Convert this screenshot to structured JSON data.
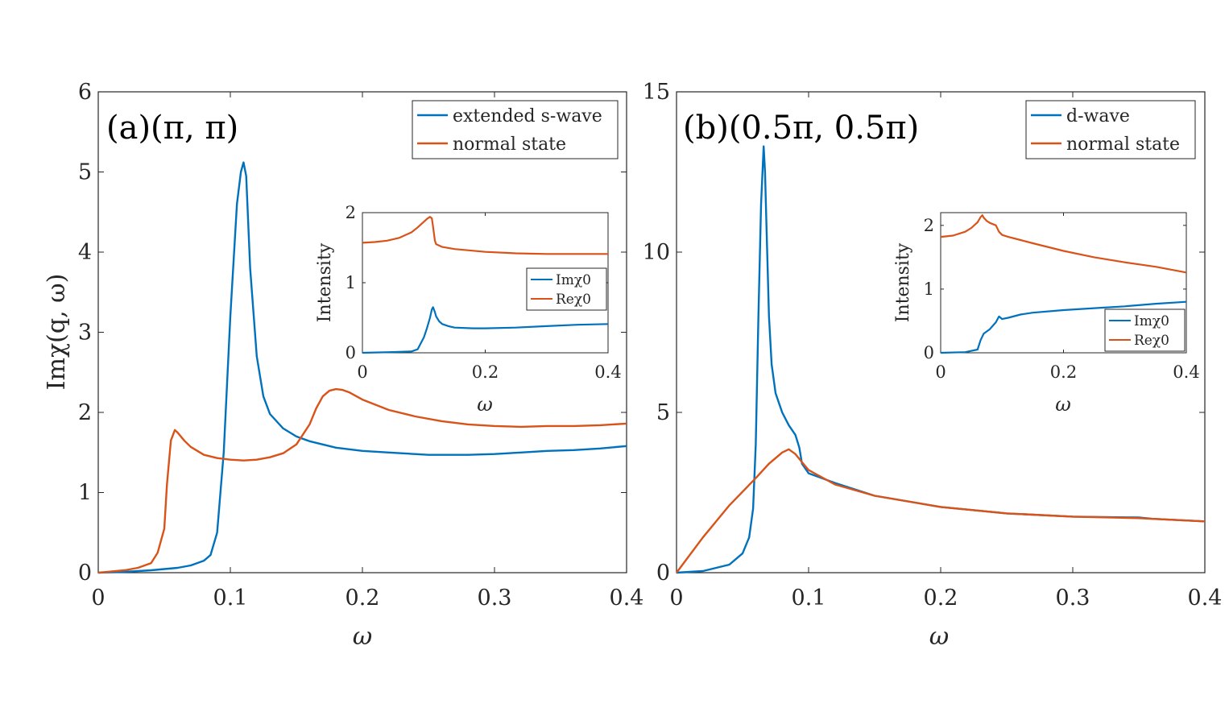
{
  "colors": {
    "blue": "#0072bd",
    "orange": "#d95319",
    "axis": "#262626"
  },
  "chart_data": [
    {
      "id": "a",
      "type": "line",
      "title": "(a)(π, π)",
      "xlabel": "ω",
      "ylabel": "Imχ(q, ω)",
      "xlim": [
        0,
        0.4
      ],
      "ylim": [
        0,
        6
      ],
      "xticks": [
        0,
        0.1,
        0.2,
        0.3,
        0.4
      ],
      "xtick_labels": [
        "0",
        "0.1",
        "0.2",
        "0.3",
        "0.4"
      ],
      "yticks": [
        0,
        1,
        2,
        3,
        4,
        5,
        6
      ],
      "ytick_labels": [
        "0",
        "1",
        "2",
        "3",
        "4",
        "5",
        "6"
      ],
      "legend_position": "top-right",
      "series": [
        {
          "name": "extended s-wave",
          "color": "#0072bd",
          "x": [
            0,
            0.02,
            0.04,
            0.06,
            0.07,
            0.08,
            0.085,
            0.09,
            0.095,
            0.1,
            0.105,
            0.108,
            0.11,
            0.112,
            0.115,
            0.12,
            0.125,
            0.13,
            0.14,
            0.15,
            0.16,
            0.18,
            0.2,
            0.22,
            0.25,
            0.28,
            0.3,
            0.32,
            0.34,
            0.36,
            0.38,
            0.4
          ],
          "y": [
            0,
            0.01,
            0.03,
            0.06,
            0.09,
            0.15,
            0.22,
            0.5,
            1.5,
            3.2,
            4.6,
            5.0,
            5.12,
            4.95,
            3.8,
            2.7,
            2.2,
            1.98,
            1.8,
            1.7,
            1.64,
            1.56,
            1.52,
            1.5,
            1.47,
            1.47,
            1.48,
            1.5,
            1.52,
            1.53,
            1.55,
            1.58
          ]
        },
        {
          "name": "normal state",
          "color": "#d95319",
          "x": [
            0,
            0.02,
            0.03,
            0.04,
            0.045,
            0.05,
            0.052,
            0.055,
            0.058,
            0.06,
            0.065,
            0.07,
            0.08,
            0.09,
            0.1,
            0.11,
            0.12,
            0.13,
            0.14,
            0.15,
            0.16,
            0.165,
            0.17,
            0.175,
            0.18,
            0.185,
            0.19,
            0.2,
            0.22,
            0.24,
            0.26,
            0.28,
            0.3,
            0.32,
            0.34,
            0.36,
            0.38,
            0.4
          ],
          "y": [
            0,
            0.03,
            0.06,
            0.12,
            0.25,
            0.55,
            1.1,
            1.65,
            1.78,
            1.75,
            1.65,
            1.57,
            1.47,
            1.43,
            1.41,
            1.4,
            1.41,
            1.44,
            1.49,
            1.6,
            1.85,
            2.05,
            2.2,
            2.27,
            2.29,
            2.28,
            2.25,
            2.16,
            2.03,
            1.95,
            1.89,
            1.85,
            1.83,
            1.82,
            1.83,
            1.83,
            1.84,
            1.86
          ]
        }
      ],
      "inset": {
        "xlabel": "ω",
        "ylabel": "Intensity",
        "xlim": [
          0,
          0.4
        ],
        "ylim": [
          0,
          2
        ],
        "xticks": [
          0,
          0.2,
          0.4
        ],
        "xtick_labels": [
          "0",
          "0.2",
          "0.4"
        ],
        "yticks": [
          0,
          1,
          2
        ],
        "ytick_labels": [
          "0",
          "1",
          "2"
        ],
        "legend_position": "middle-right",
        "series": [
          {
            "name": "Imχ0",
            "color": "#0072bd",
            "x": [
              0,
              0.05,
              0.08,
              0.09,
              0.1,
              0.105,
              0.11,
              0.113,
              0.115,
              0.118,
              0.12,
              0.125,
              0.13,
              0.14,
              0.15,
              0.18,
              0.2,
              0.25,
              0.3,
              0.35,
              0.4
            ],
            "y": [
              0,
              0.01,
              0.02,
              0.05,
              0.22,
              0.35,
              0.5,
              0.62,
              0.65,
              0.58,
              0.52,
              0.45,
              0.41,
              0.38,
              0.36,
              0.35,
              0.35,
              0.36,
              0.38,
              0.4,
              0.41
            ]
          },
          {
            "name": "Reχ0",
            "color": "#d95319",
            "x": [
              0,
              0.02,
              0.04,
              0.06,
              0.08,
              0.09,
              0.1,
              0.105,
              0.11,
              0.113,
              0.115,
              0.118,
              0.12,
              0.125,
              0.13,
              0.15,
              0.2,
              0.25,
              0.3,
              0.35,
              0.4
            ],
            "y": [
              1.57,
              1.58,
              1.6,
              1.64,
              1.72,
              1.79,
              1.87,
              1.91,
              1.94,
              1.92,
              1.8,
              1.6,
              1.55,
              1.53,
              1.51,
              1.48,
              1.44,
              1.42,
              1.41,
              1.41,
              1.41
            ]
          }
        ]
      }
    },
    {
      "id": "b",
      "type": "line",
      "title": "(b)(0.5π, 0.5π)",
      "xlabel": "ω",
      "ylabel": "",
      "xlim": [
        0,
        0.4
      ],
      "ylim": [
        0,
        15
      ],
      "xticks": [
        0,
        0.1,
        0.2,
        0.3,
        0.4
      ],
      "xtick_labels": [
        "0",
        "0.1",
        "0.2",
        "0.3",
        "0.4"
      ],
      "yticks": [
        0,
        5,
        10,
        15
      ],
      "ytick_labels": [
        "0",
        "5",
        "10",
        "15"
      ],
      "legend_position": "top-right",
      "series": [
        {
          "name": "d-wave",
          "color": "#0072bd",
          "x": [
            0,
            0.02,
            0.04,
            0.05,
            0.055,
            0.058,
            0.06,
            0.062,
            0.064,
            0.066,
            0.067,
            0.068,
            0.07,
            0.072,
            0.075,
            0.08,
            0.085,
            0.09,
            0.093,
            0.095,
            0.1,
            0.12,
            0.15,
            0.2,
            0.25,
            0.3,
            0.35,
            0.36,
            0.4
          ],
          "y": [
            0,
            0.05,
            0.25,
            0.6,
            1.1,
            2.0,
            4.0,
            8.0,
            11.5,
            13.3,
            12.5,
            11.0,
            8.0,
            6.5,
            5.6,
            5.0,
            4.6,
            4.3,
            3.9,
            3.4,
            3.1,
            2.8,
            2.4,
            2.05,
            1.85,
            1.75,
            1.72,
            1.68,
            1.6
          ]
        },
        {
          "name": "normal state",
          "color": "#d95319",
          "x": [
            0,
            0.02,
            0.04,
            0.06,
            0.07,
            0.08,
            0.085,
            0.09,
            0.095,
            0.1,
            0.12,
            0.15,
            0.2,
            0.25,
            0.3,
            0.35,
            0.4
          ],
          "y": [
            0,
            1.1,
            2.1,
            2.95,
            3.4,
            3.75,
            3.85,
            3.7,
            3.45,
            3.2,
            2.75,
            2.4,
            2.05,
            1.85,
            1.75,
            1.7,
            1.6
          ]
        }
      ],
      "inset": {
        "xlabel": "ω",
        "ylabel": "Intensity",
        "xlim": [
          0,
          0.4
        ],
        "ylim": [
          0,
          2.2
        ],
        "xticks": [
          0,
          0.2,
          0.4
        ],
        "xtick_labels": [
          "0",
          "0.2",
          "0.4"
        ],
        "yticks": [
          0,
          1,
          2
        ],
        "ytick_labels": [
          "0",
          "1",
          "2"
        ],
        "legend_position": "bottom-right",
        "series": [
          {
            "name": "Imχ0",
            "color": "#0072bd",
            "x": [
              0,
              0.04,
              0.06,
              0.065,
              0.07,
              0.08,
              0.09,
              0.095,
              0.1,
              0.11,
              0.13,
              0.15,
              0.2,
              0.25,
              0.3,
              0.35,
              0.4
            ],
            "y": [
              0,
              0.01,
              0.05,
              0.2,
              0.3,
              0.37,
              0.48,
              0.57,
              0.53,
              0.55,
              0.6,
              0.63,
              0.67,
              0.7,
              0.73,
              0.77,
              0.8
            ]
          },
          {
            "name": "Reχ0",
            "color": "#d95319",
            "x": [
              0,
              0.02,
              0.04,
              0.05,
              0.06,
              0.065,
              0.068,
              0.07,
              0.075,
              0.08,
              0.09,
              0.095,
              0.1,
              0.11,
              0.13,
              0.15,
              0.2,
              0.25,
              0.3,
              0.35,
              0.4
            ],
            "y": [
              1.82,
              1.84,
              1.9,
              1.96,
              2.05,
              2.13,
              2.16,
              2.12,
              2.07,
              2.04,
              2.0,
              1.9,
              1.85,
              1.82,
              1.77,
              1.72,
              1.6,
              1.5,
              1.42,
              1.35,
              1.26
            ]
          }
        ]
      }
    }
  ]
}
